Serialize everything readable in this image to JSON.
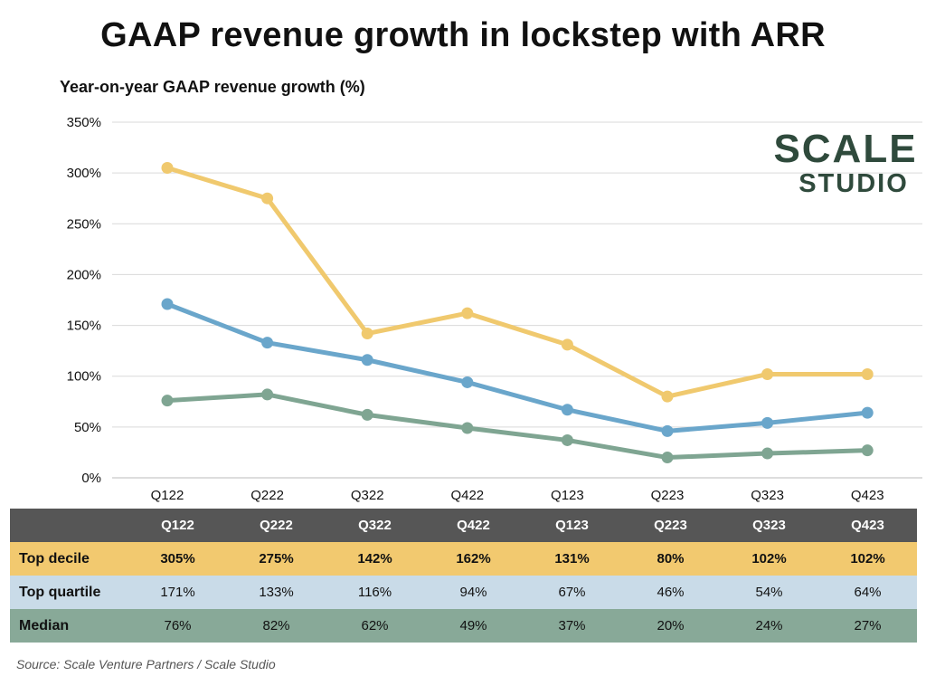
{
  "title": "GAAP revenue growth in lockstep with ARR",
  "logo": {
    "line1": "SCALE",
    "line2": "STUDIO"
  },
  "source": "Source: Scale Venture Partners / Scale Studio",
  "chart_data": {
    "type": "line",
    "title": "GAAP revenue growth in lockstep with ARR",
    "ylabel": "Year-on-year GAAP revenue growth (%)",
    "xlabel": "",
    "categories": [
      "Q122",
      "Q222",
      "Q322",
      "Q422",
      "Q123",
      "Q223",
      "Q323",
      "Q423"
    ],
    "ylim": [
      0,
      350
    ],
    "yticks": [
      0,
      50,
      100,
      150,
      200,
      250,
      300,
      350
    ],
    "ytick_labels": [
      "0%",
      "50%",
      "100%",
      "150%",
      "200%",
      "250%",
      "300%",
      "350%"
    ],
    "grid": true,
    "series": [
      {
        "name": "Top decile",
        "color": "#f0c96e",
        "values": [
          305,
          275,
          142,
          162,
          131,
          80,
          102,
          102
        ]
      },
      {
        "name": "Top quartile",
        "color": "#6aa6cb",
        "values": [
          171,
          133,
          116,
          94,
          67,
          46,
          54,
          64
        ]
      },
      {
        "name": "Median",
        "color": "#7fa592",
        "values": [
          76,
          82,
          62,
          49,
          37,
          20,
          24,
          27
        ]
      }
    ]
  },
  "table": {
    "header": [
      "Q122",
      "Q222",
      "Q322",
      "Q422",
      "Q123",
      "Q223",
      "Q323",
      "Q423"
    ],
    "rows": [
      {
        "label": "Top decile",
        "cells": [
          "305%",
          "275%",
          "142%",
          "162%",
          "131%",
          "80%",
          "102%",
          "102%"
        ]
      },
      {
        "label": "Top quartile",
        "cells": [
          "171%",
          "133%",
          "116%",
          "94%",
          "67%",
          "46%",
          "54%",
          "64%"
        ]
      },
      {
        "label": "Median",
        "cells": [
          "76%",
          "82%",
          "62%",
          "49%",
          "37%",
          "20%",
          "24%",
          "27%"
        ]
      }
    ]
  }
}
